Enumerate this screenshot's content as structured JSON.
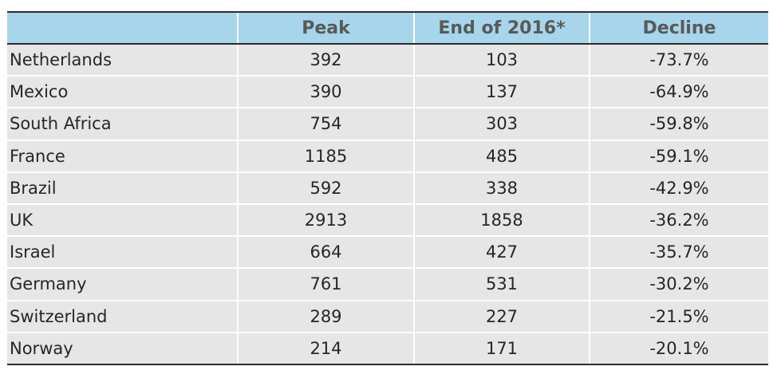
{
  "table": {
    "headers": [
      "",
      "Peak",
      "End of 2016*",
      "Decline"
    ],
    "rows": [
      {
        "country": "Netherlands",
        "peak": "392",
        "end_2016": "103",
        "decline": "-73.7%"
      },
      {
        "country": "Mexico",
        "peak": "390",
        "end_2016": "137",
        "decline": "-64.9%"
      },
      {
        "country": "South Africa",
        "peak": "754",
        "end_2016": "303",
        "decline": "-59.8%"
      },
      {
        "country": "France",
        "peak": "1185",
        "end_2016": "485",
        "decline": "-59.1%"
      },
      {
        "country": "Brazil",
        "peak": "592",
        "end_2016": "338",
        "decline": "-42.9%"
      },
      {
        "country": "UK",
        "peak": "2913",
        "end_2016": "1858",
        "decline": "-36.2%"
      },
      {
        "country": "Israel",
        "peak": "664",
        "end_2016": "427",
        "decline": "-35.7%"
      },
      {
        "country": "Germany",
        "peak": "761",
        "end_2016": "531",
        "decline": "-30.2%"
      },
      {
        "country": "Switzerland",
        "peak": "289",
        "end_2016": "227",
        "decline": "-21.5%"
      },
      {
        "country": "Norway",
        "peak": "214",
        "end_2016": "171",
        "decline": "-20.1%"
      }
    ],
    "colors": {
      "header_bg": "#a7d5ec",
      "header_text": "#595959",
      "row_bg": "#e6e6e6",
      "rule": "#2b2b2b"
    }
  }
}
